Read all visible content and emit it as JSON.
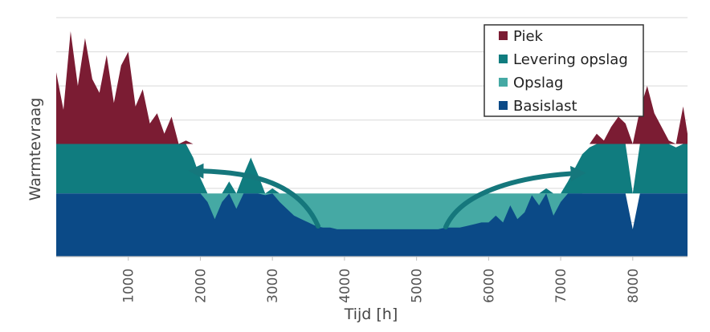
{
  "chart_data": {
    "type": "area",
    "title": "",
    "xlabel": "Tijd [h]",
    "ylabel": "Warmtevraag",
    "xlim": [
      0,
      8760
    ],
    "ylim": [
      0,
      7
    ],
    "x_ticks": [
      1000,
      2000,
      3000,
      4000,
      5000,
      6000,
      7000,
      8000
    ],
    "grid": true,
    "legend": "top-right",
    "thresholds": {
      "basislast": 1.85,
      "opslag": 3.3
    },
    "x": [
      0,
      100,
      200,
      300,
      400,
      500,
      600,
      700,
      800,
      900,
      1000,
      1100,
      1200,
      1300,
      1400,
      1500,
      1600,
      1700,
      1800,
      1900,
      2000,
      2100,
      2200,
      2300,
      2400,
      2500,
      2600,
      2700,
      2800,
      2900,
      3000,
      3100,
      3200,
      3300,
      3400,
      3500,
      3600,
      3700,
      3800,
      3900,
      4000,
      4100,
      4200,
      4300,
      4400,
      4500,
      4600,
      4700,
      4800,
      4900,
      5000,
      5100,
      5200,
      5300,
      5400,
      5500,
      5600,
      5700,
      5800,
      5900,
      6000,
      6100,
      6200,
      6300,
      6400,
      6500,
      6600,
      6700,
      6800,
      6900,
      7000,
      7100,
      7200,
      7300,
      7400,
      7500,
      7600,
      7700,
      7800,
      7900,
      8000,
      8100,
      8200,
      8300,
      8400,
      8500,
      8600,
      8700,
      8760
    ],
    "total_demand": [
      5.4,
      4.3,
      6.6,
      5.0,
      6.4,
      5.2,
      4.8,
      5.9,
      4.5,
      5.6,
      6.0,
      4.4,
      4.9,
      3.9,
      4.2,
      3.6,
      4.1,
      3.3,
      3.4,
      2.9,
      2.3,
      1.6,
      1.1,
      1.6,
      2.2,
      1.4,
      2.4,
      2.9,
      2.4,
      1.8,
      2.0,
      1.6,
      1.4,
      1.2,
      1.1,
      1.0,
      0.9,
      0.85,
      0.85,
      0.8,
      0.8,
      0.8,
      0.8,
      0.8,
      0.8,
      0.8,
      0.8,
      0.8,
      0.8,
      0.8,
      0.8,
      0.8,
      0.8,
      0.8,
      0.85,
      0.85,
      0.85,
      0.9,
      0.95,
      1.0,
      1.0,
      1.2,
      1.0,
      1.5,
      1.1,
      1.3,
      1.8,
      1.5,
      2.0,
      1.2,
      1.6,
      2.2,
      2.6,
      3.0,
      3.2,
      3.6,
      3.4,
      3.8,
      4.1,
      3.9,
      0.8,
      4.3,
      5.0,
      4.2,
      3.8,
      3.4,
      3.2,
      4.4,
      3.6
    ],
    "series": [
      {
        "name": "Piek",
        "color": "#7b1c33"
      },
      {
        "name": "Levering opslag",
        "color": "#107c7f"
      },
      {
        "name": "Opslag",
        "color": "#45a9a4"
      },
      {
        "name": "Basislast",
        "color": "#0b4a87"
      }
    ]
  },
  "annotations": [
    {
      "name": "arrow-left",
      "color": "#15777c"
    },
    {
      "name": "arrow-right",
      "color": "#15777c"
    }
  ]
}
